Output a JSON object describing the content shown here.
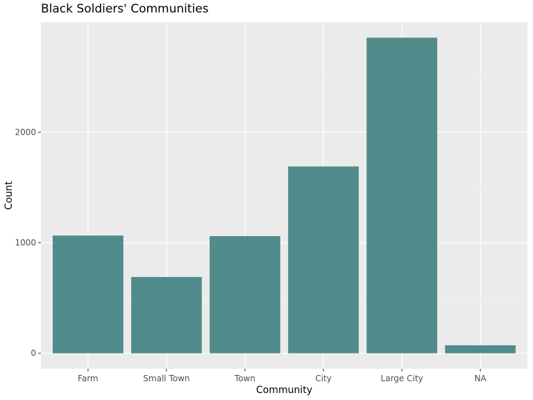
{
  "chart_data": {
    "type": "bar",
    "title": "Black Soldiers' Communities",
    "xlabel": "Community",
    "ylabel": "Count",
    "categories": [
      "Farm",
      "Small Town",
      "Town",
      "City",
      "Large City",
      "NA"
    ],
    "values": [
      1065,
      690,
      1060,
      1690,
      2855,
      72
    ],
    "ylim": [
      -140,
      2995
    ],
    "yticks": [
      0,
      1000,
      2000
    ],
    "ytick_labels": [
      "0",
      "1000",
      "2000"
    ],
    "grid": true,
    "colors": {
      "bar": "#528b8b",
      "panel": "#ebebeb",
      "grid_major": "#ffffff",
      "grid_minor": "#f7f7f7",
      "tick": "#333333"
    }
  }
}
